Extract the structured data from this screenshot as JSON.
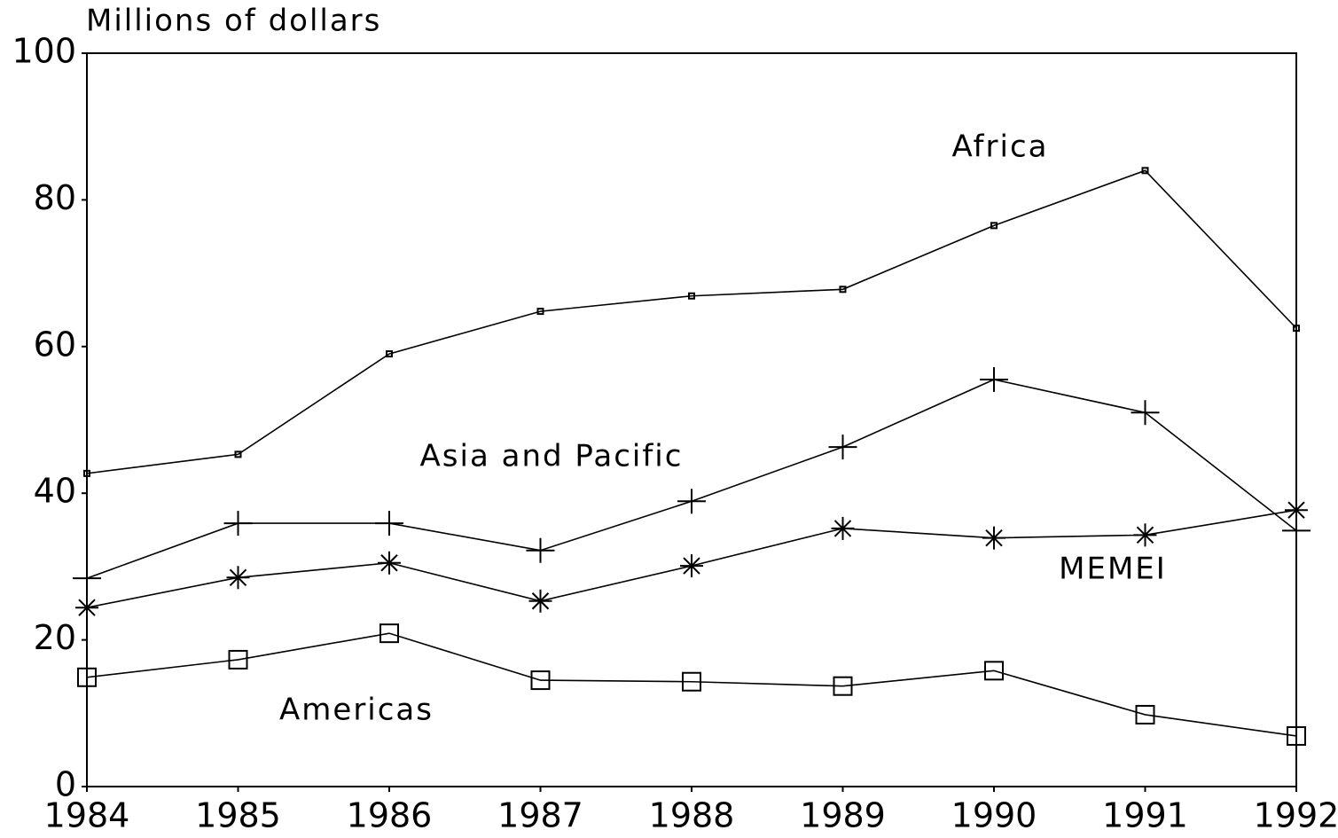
{
  "chart_data": {
    "type": "line",
    "ylabel": "Millions of dollars",
    "x": [
      1984,
      1985,
      1986,
      1987,
      1988,
      1989,
      1990,
      1991,
      1992
    ],
    "xlim": [
      1984,
      1992
    ],
    "xticks": [
      1984,
      1985,
      1986,
      1987,
      1988,
      1989,
      1990,
      1991,
      1992
    ],
    "ylim": [
      0,
      100
    ],
    "yticks": [
      0,
      20,
      40,
      60,
      80,
      100
    ],
    "grid": false,
    "series": [
      {
        "name": "Africa",
        "color": "#000000",
        "marker": "small-square",
        "values": [
          42.7,
          45.3,
          59,
          64.8,
          66.9,
          67.8,
          76.5,
          84,
          62.5
        ]
      },
      {
        "name": "Asia and Pacific",
        "color": "#000000",
        "marker": "plus",
        "values": [
          28.4,
          35.9,
          35.9,
          32.2,
          38.9,
          46.3,
          55.5,
          51,
          34.9
        ]
      },
      {
        "name": "MEMEI",
        "color": "#000000",
        "marker": "asterisk",
        "values": [
          24.4,
          28.5,
          30.5,
          25.3,
          30.1,
          35.2,
          33.9,
          34.3,
          37.7
        ]
      },
      {
        "name": "Americas",
        "color": "#000000",
        "marker": "square",
        "values": [
          14.9,
          17.3,
          20.9,
          14.5,
          14.3,
          13.7,
          15.8,
          9.8,
          6.9
        ]
      }
    ]
  }
}
